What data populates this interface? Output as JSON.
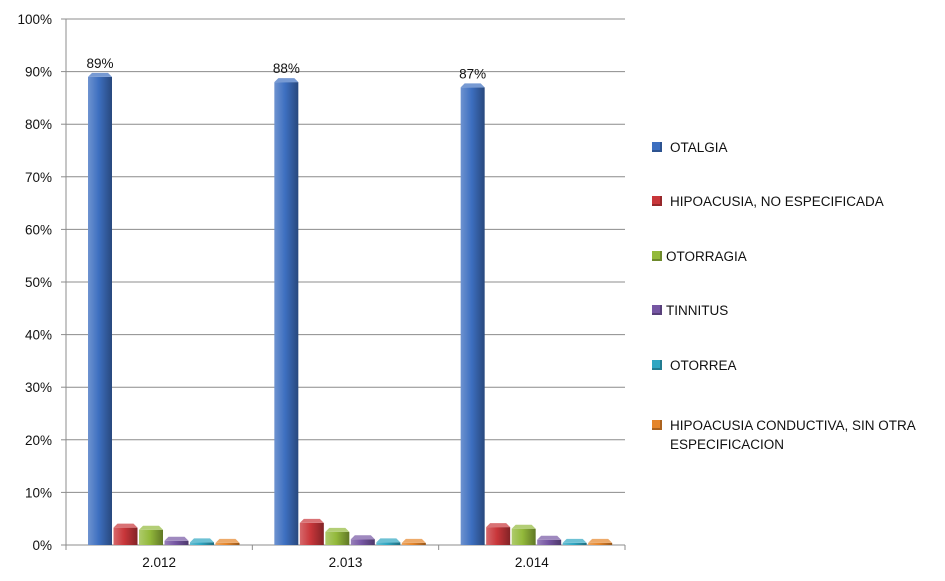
{
  "colors": {
    "OTALGIA": "#3d6fc0",
    "HIPOACUSIA, NO ESPECIFICADA": "#c8363a",
    "OTORRAGIA": "#93b93b",
    "TINNITUS": "#7656a3",
    "OTORREA": "#2fa6c2",
    "HIPOACUSIA CONDUCTIVA, SIN OTRA ESPECIFICACION": "#e5852a"
  },
  "chart_data": {
    "type": "bar",
    "categories": [
      "2.012",
      "2.013",
      "2.014"
    ],
    "series": [
      {
        "name": "OTALGIA",
        "values": [
          0.89,
          0.88,
          0.87
        ],
        "data_labels": [
          "89%",
          "88%",
          "87%"
        ]
      },
      {
        "name": "HIPOACUSIA, NO ESPECIFICADA",
        "values": [
          0.033,
          0.042,
          0.034
        ]
      },
      {
        "name": "OTORRAGIA",
        "values": [
          0.029,
          0.025,
          0.031
        ]
      },
      {
        "name": "TINNITUS",
        "values": [
          0.008,
          0.011,
          0.01
        ]
      },
      {
        "name": "OTORREA",
        "values": [
          0.005,
          0.005,
          0.004
        ]
      },
      {
        "name": "HIPOACUSIA CONDUCTIVA, SIN OTRA ESPECIFICACION",
        "values": [
          0.004,
          0.004,
          0.004
        ]
      }
    ],
    "ylim": [
      0,
      1
    ],
    "yticks": [
      "0%",
      "10%",
      "20%",
      "30%",
      "40%",
      "50%",
      "60%",
      "70%",
      "80%",
      "90%",
      "100%"
    ],
    "grid": true,
    "legend_position": "right"
  }
}
